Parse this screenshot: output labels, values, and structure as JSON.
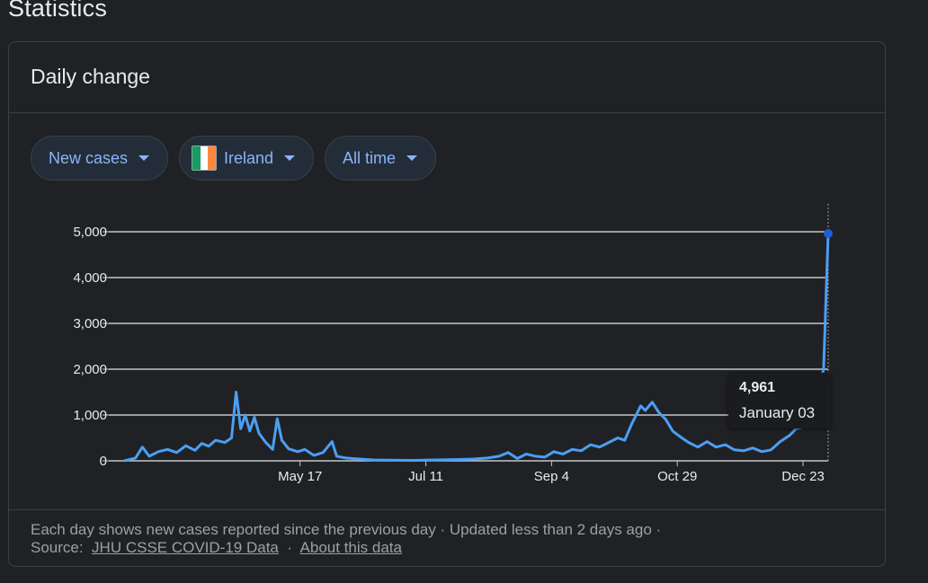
{
  "section_title": "Statistics",
  "card": {
    "title": "Daily change",
    "filters": {
      "metric": "New cases",
      "country": "Ireland",
      "range": "All time"
    },
    "flag_colors": [
      "#169b62",
      "#ffffff",
      "#ff883e"
    ],
    "tooltip": {
      "value": "4,961",
      "date": "January 03"
    },
    "footer": {
      "note": "Each day shows new cases reported since the previous day · Updated less than 2 days ago  ·",
      "source_label": "Source:",
      "source_link": "JHU CSSE COVID-19 Data",
      "separator": "·",
      "about_link": "About this data"
    }
  },
  "colors": {
    "line": "#4a9ff5",
    "grid": "#c3c6ca",
    "accent": "#8ab4f8",
    "point": "#1e5fd4"
  },
  "chart_data": {
    "type": "line",
    "xlabel": "",
    "ylabel": "",
    "ylim": [
      0,
      5000
    ],
    "ytick_labels": [
      "0",
      "1,000",
      "2,000",
      "3,000",
      "4,000",
      "5,000"
    ],
    "ytick_values": [
      0,
      1000,
      2000,
      3000,
      4000,
      5000
    ],
    "x_start": "2020-03-01",
    "x_end": "2021-01-03",
    "xtick_labels": [
      "May 17",
      "Jul 11",
      "Sep 4",
      "Oct 29",
      "Dec 23"
    ],
    "xtick_dates": [
      "2020-05-17",
      "2020-07-11",
      "2020-09-04",
      "2020-10-29",
      "2020-12-23"
    ],
    "series": [
      {
        "points": [
          [
            "2020-03-01",
            0
          ],
          [
            "2020-03-06",
            60
          ],
          [
            "2020-03-09",
            300
          ],
          [
            "2020-03-12",
            100
          ],
          [
            "2020-03-16",
            200
          ],
          [
            "2020-03-20",
            250
          ],
          [
            "2020-03-24",
            180
          ],
          [
            "2020-03-28",
            330
          ],
          [
            "2020-04-01",
            230
          ],
          [
            "2020-04-04",
            380
          ],
          [
            "2020-04-07",
            320
          ],
          [
            "2020-04-10",
            450
          ],
          [
            "2020-04-14",
            400
          ],
          [
            "2020-04-17",
            500
          ],
          [
            "2020-04-19",
            1500
          ],
          [
            "2020-04-21",
            700
          ],
          [
            "2020-04-23",
            1000
          ],
          [
            "2020-04-25",
            650
          ],
          [
            "2020-04-27",
            950
          ],
          [
            "2020-04-29",
            600
          ],
          [
            "2020-05-02",
            400
          ],
          [
            "2020-05-05",
            250
          ],
          [
            "2020-05-07",
            920
          ],
          [
            "2020-05-09",
            450
          ],
          [
            "2020-05-12",
            260
          ],
          [
            "2020-05-16",
            200
          ],
          [
            "2020-05-19",
            250
          ],
          [
            "2020-05-23",
            120
          ],
          [
            "2020-05-27",
            180
          ],
          [
            "2020-05-31",
            420
          ],
          [
            "2020-06-02",
            100
          ],
          [
            "2020-06-06",
            60
          ],
          [
            "2020-06-12",
            40
          ],
          [
            "2020-06-18",
            20
          ],
          [
            "2020-06-25",
            15
          ],
          [
            "2020-07-05",
            10
          ],
          [
            "2020-07-15",
            20
          ],
          [
            "2020-07-25",
            30
          ],
          [
            "2020-08-01",
            40
          ],
          [
            "2020-08-07",
            60
          ],
          [
            "2020-08-12",
            100
          ],
          [
            "2020-08-16",
            180
          ],
          [
            "2020-08-20",
            50
          ],
          [
            "2020-08-24",
            150
          ],
          [
            "2020-08-28",
            100
          ],
          [
            "2020-09-01",
            80
          ],
          [
            "2020-09-05",
            200
          ],
          [
            "2020-09-09",
            150
          ],
          [
            "2020-09-13",
            250
          ],
          [
            "2020-09-17",
            220
          ],
          [
            "2020-09-21",
            350
          ],
          [
            "2020-09-25",
            300
          ],
          [
            "2020-09-29",
            400
          ],
          [
            "2020-10-03",
            500
          ],
          [
            "2020-10-06",
            450
          ],
          [
            "2020-10-09",
            800
          ],
          [
            "2020-10-11",
            1000
          ],
          [
            "2020-10-13",
            1200
          ],
          [
            "2020-10-15",
            1100
          ],
          [
            "2020-10-18",
            1280
          ],
          [
            "2020-10-21",
            1050
          ],
          [
            "2020-10-24",
            900
          ],
          [
            "2020-10-27",
            650
          ],
          [
            "2020-10-31",
            500
          ],
          [
            "2020-11-03",
            400
          ],
          [
            "2020-11-07",
            300
          ],
          [
            "2020-11-11",
            420
          ],
          [
            "2020-11-15",
            300
          ],
          [
            "2020-11-19",
            350
          ],
          [
            "2020-11-23",
            240
          ],
          [
            "2020-11-27",
            220
          ],
          [
            "2020-12-01",
            280
          ],
          [
            "2020-12-05",
            200
          ],
          [
            "2020-12-09",
            240
          ],
          [
            "2020-12-13",
            420
          ],
          [
            "2020-12-17",
            550
          ],
          [
            "2020-12-20",
            700
          ],
          [
            "2020-12-24",
            750
          ],
          [
            "2020-12-28",
            980
          ],
          [
            "2020-12-31",
            1800
          ],
          [
            "2021-01-01",
            2000
          ],
          [
            "2021-01-03",
            4961
          ]
        ]
      }
    ],
    "highlight_point": [
      "2021-01-03",
      4961
    ],
    "grid": true,
    "legend": "none"
  }
}
